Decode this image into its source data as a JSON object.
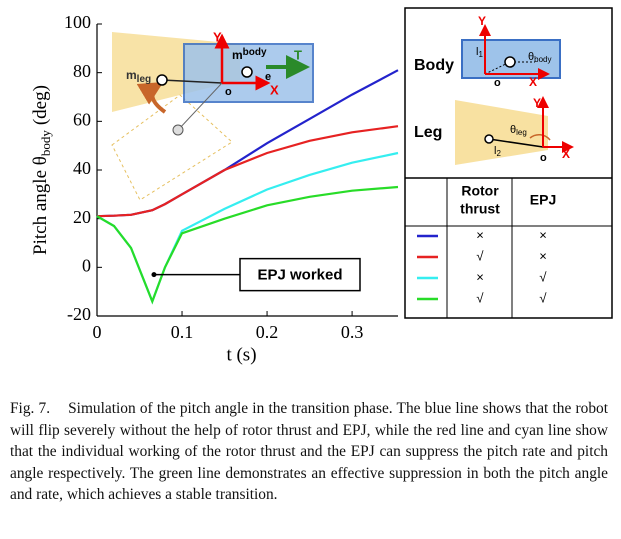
{
  "chart_data": {
    "type": "line",
    "x_label": "t (s)",
    "y_label": {
      "main": "Pitch angle θ",
      "sub": "body",
      "unit": "(deg)"
    },
    "x": [
      0,
      0.02,
      0.04,
      0.065,
      0.08,
      0.1,
      0.15,
      0.2,
      0.25,
      0.3,
      0.354
    ],
    "series": [
      {
        "color": "#2323cc",
        "values": [
          21,
          21.2,
          21.6,
          23.5,
          26,
          30,
          40,
          51,
          61,
          71,
          81
        ]
      },
      {
        "color": "#e62222",
        "values": [
          21,
          21.2,
          21.6,
          23.5,
          26,
          30,
          40,
          47,
          52,
          55.5,
          58
        ]
      },
      {
        "color": "#35eef0",
        "values": [
          21,
          17,
          8,
          -14,
          0,
          15,
          24,
          32,
          38,
          43,
          47
        ]
      },
      {
        "color": "#28dc28",
        "values": [
          21,
          17,
          8,
          -14,
          0,
          14,
          20,
          25.5,
          29,
          31.5,
          33
        ]
      }
    ],
    "xlim": [
      0,
      0.354
    ],
    "xticks": [
      0,
      0.1,
      0.2,
      0.3
    ],
    "ylim": [
      -20,
      100
    ],
    "yticks": [
      -20,
      0,
      20,
      40,
      60,
      80,
      100
    ],
    "annotation": {
      "text": "EPJ worked",
      "x": 0.067,
      "y": -3
    }
  },
  "inset": {
    "y_axis": "Y",
    "x_axis": "X",
    "origin": "o",
    "m_body": {
      "main": "m",
      "sub": "body"
    },
    "m_leg": {
      "main": "m",
      "sub": "leg"
    },
    "thrust": "T",
    "e": "e"
  },
  "panel": {
    "body": {
      "title": "Body",
      "l": {
        "main": "l",
        "sub": "1"
      },
      "theta": {
        "main": "θ",
        "sub": "body"
      },
      "x_axis": "X",
      "y_axis": "Y",
      "origin": "o"
    },
    "leg": {
      "title": "Leg",
      "l": {
        "main": "l",
        "sub": "2"
      },
      "theta": {
        "main": "θ",
        "sub": "leg"
      },
      "x_axis": "X",
      "y_axis": "Y",
      "origin": "o"
    }
  },
  "table": {
    "header": [
      [
        "Rotor",
        "thrust"
      ],
      "EPJ"
    ],
    "rows": [
      [
        "×",
        "×"
      ],
      [
        "√",
        "×"
      ],
      [
        "×",
        "√"
      ],
      [
        "√",
        "√"
      ]
    ]
  },
  "caption": {
    "label": "Fig. 7.",
    "text": "Simulation of the pitch angle in the transition phase. The blue line shows that the robot will flip severely without the help of rotor thrust and EPJ, while the red line and cyan line show that the individual working of the rotor thrust and the EPJ can suppress the pitch rate and pitch angle respectively. The green line demonstrates an effective suppression in both the pitch angle and rate, which achieves a stable transition."
  }
}
